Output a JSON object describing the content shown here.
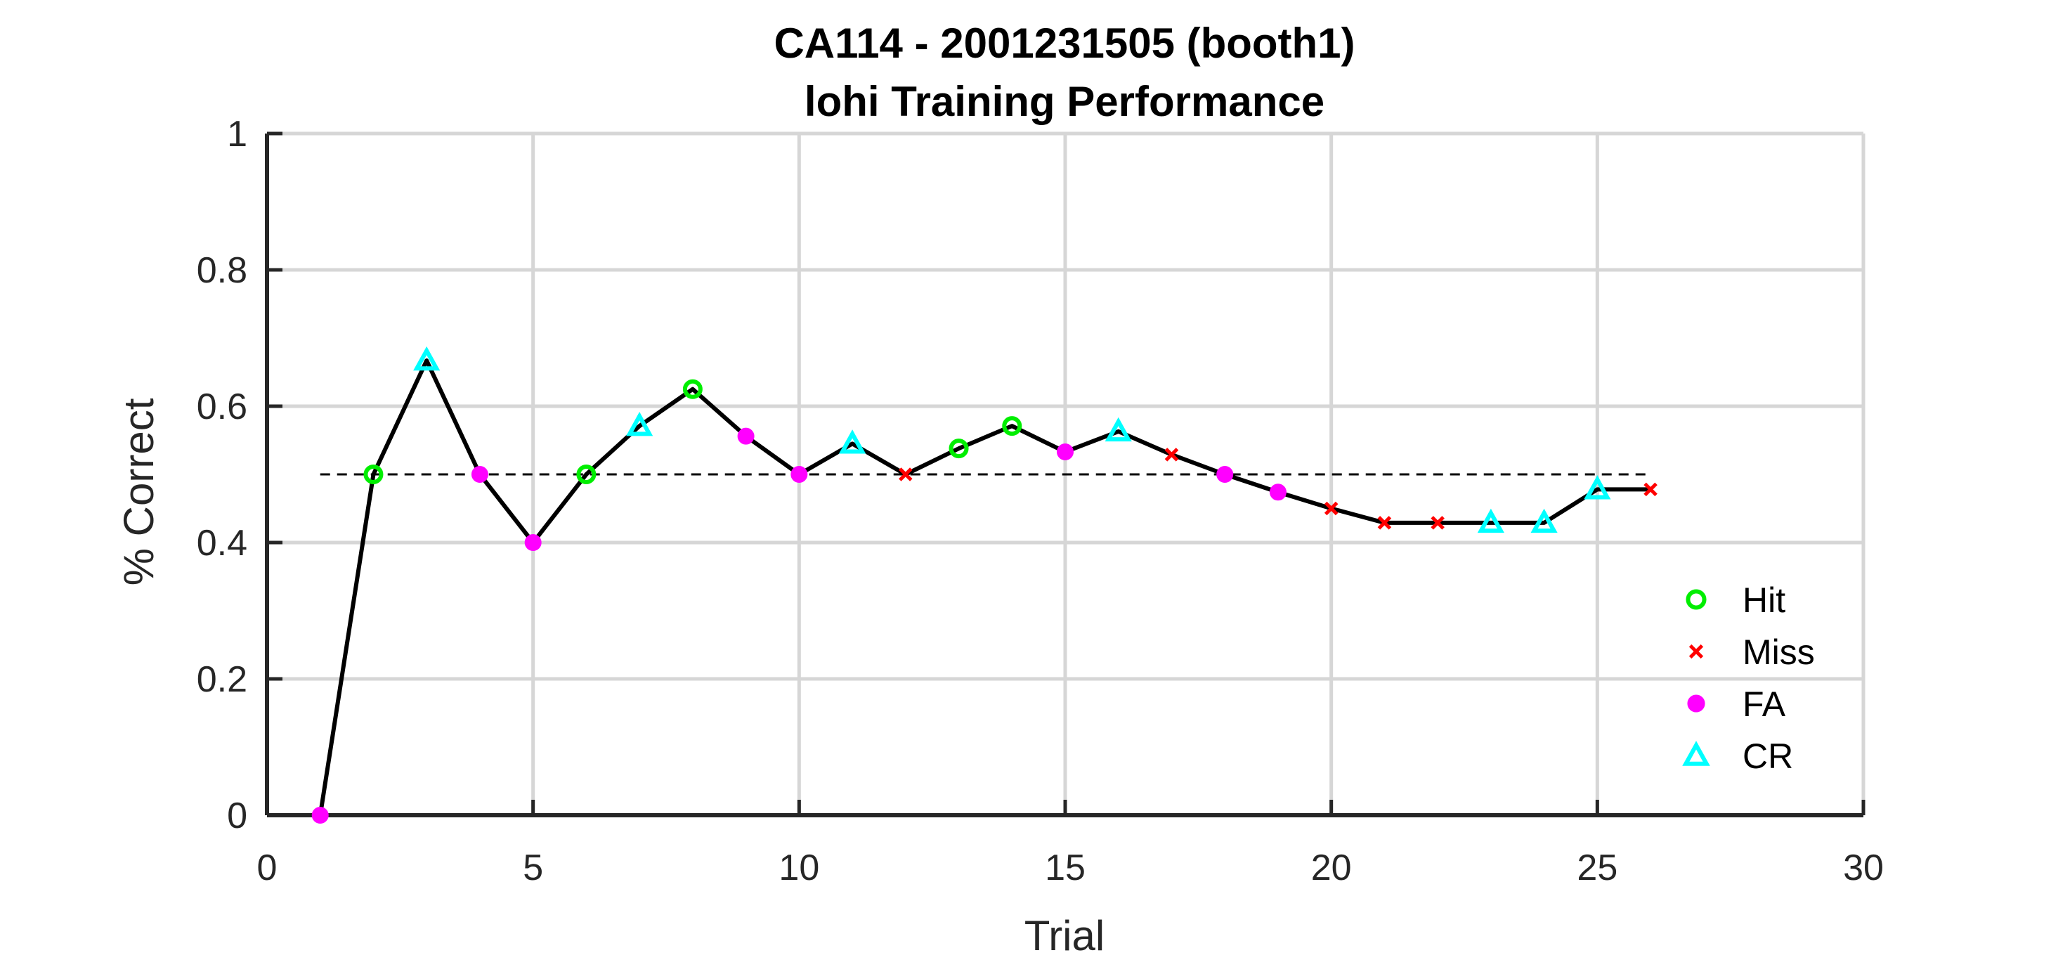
{
  "chart_data": {
    "type": "line",
    "title": "CA114 - 2001231505 (booth1)",
    "subtitle": "lohi Training Performance",
    "xlabel": "Trial",
    "ylabel": "% Correct",
    "xlim": [
      0,
      30
    ],
    "ylim": [
      0,
      1
    ],
    "xticks": [
      "0",
      "5",
      "10",
      "15",
      "20",
      "25",
      "30"
    ],
    "yticks": [
      "0",
      "0.2",
      "0.4",
      "0.6",
      "0.8",
      "1"
    ],
    "grid": true,
    "reference_line": {
      "y": 0.5,
      "x_range": [
        1,
        26
      ],
      "style": "dashed"
    },
    "legend_position": "lower-right",
    "x": [
      1,
      2,
      3,
      4,
      5,
      6,
      7,
      8,
      9,
      10,
      11,
      12,
      13,
      14,
      15,
      16,
      17,
      18,
      19,
      20,
      21,
      22,
      23,
      24,
      25,
      26
    ],
    "y": [
      0,
      0.5,
      0.667,
      0.5,
      0.4,
      0.5,
      0.571,
      0.625,
      0.556,
      0.5,
      0.545,
      0.5,
      0.538,
      0.571,
      0.533,
      0.563,
      0.529,
      0.5,
      0.474,
      0.45,
      0.429,
      0.429,
      0.429,
      0.429,
      0.478,
      0.478
    ],
    "outcomes": [
      "FA",
      "Hit",
      "CR",
      "FA",
      "FA",
      "Hit",
      "CR",
      "Hit",
      "FA",
      "FA",
      "CR",
      "Miss",
      "Hit",
      "Hit",
      "FA",
      "CR",
      "Miss",
      "FA",
      "FA",
      "Miss",
      "Miss",
      "Miss",
      "CR",
      "CR",
      "CR",
      "Miss"
    ],
    "legend": [
      {
        "name": "Hit",
        "color": "#00ee00",
        "marker": "circle-open"
      },
      {
        "name": "Miss",
        "color": "#ff0000",
        "marker": "x"
      },
      {
        "name": "FA",
        "color": "#ff00ff",
        "marker": "dot"
      },
      {
        "name": "CR",
        "color": "#00ffff",
        "marker": "triangle-open"
      }
    ],
    "line_color": "#000000"
  }
}
